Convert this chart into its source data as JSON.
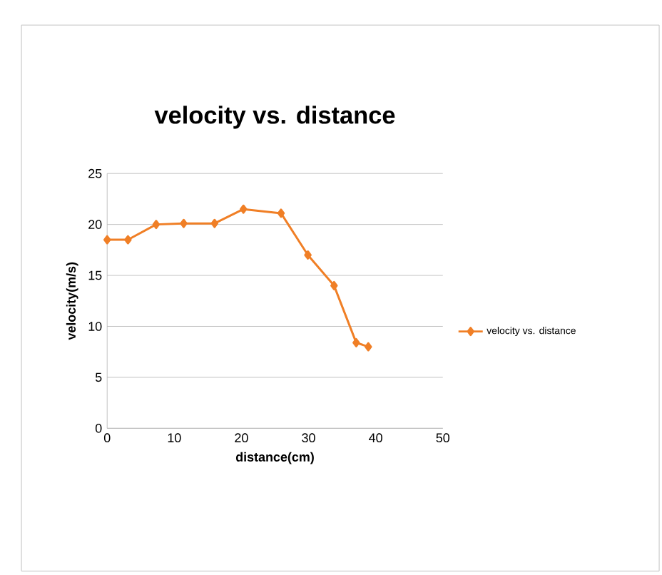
{
  "chart_data": {
    "type": "line",
    "title": "velocity vs. distance",
    "xlabel": "distance(cm)",
    "ylabel": "velocity(m/s)",
    "x": [
      0,
      3.1,
      7.3,
      11.4,
      16,
      20.3,
      25.9,
      29.9,
      33.8,
      37.1,
      38.9
    ],
    "series": [
      {
        "name": "velocity vs. distance",
        "color": "#f07f26",
        "values": [
          18.5,
          18.5,
          20,
          20.1,
          20.1,
          21.5,
          21.1,
          17,
          14,
          8.4,
          8
        ]
      }
    ],
    "xlim": [
      0,
      50
    ],
    "xticks": [
      0,
      10,
      20,
      30,
      40,
      50
    ],
    "ylim": [
      0,
      25
    ],
    "yticks": [
      0,
      5,
      10,
      15,
      20,
      25
    ],
    "grid": "y",
    "legend": "right",
    "marker": "diamond",
    "line_style": "solid"
  }
}
